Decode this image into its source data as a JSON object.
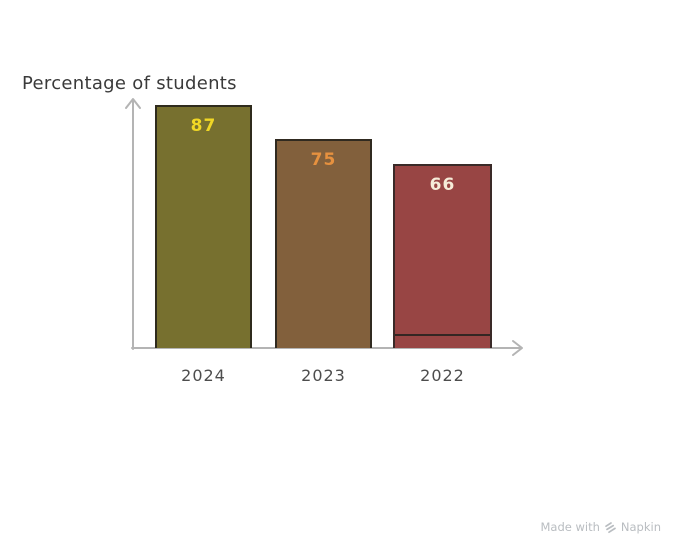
{
  "title": "Percentage of students",
  "watermark": {
    "prefix": "Made with",
    "brand": "Napkin"
  },
  "colors": {
    "axis": "#b4b4b4",
    "title_text": "#3a3a3a",
    "category_text": "#4d4d4d",
    "watermark_text": "#b9bdc1"
  },
  "chart_data": {
    "type": "bar",
    "title": "Percentage of students",
    "categories": [
      "2024",
      "2023",
      "2022"
    ],
    "values": [
      87,
      75,
      66
    ],
    "xlabel": "",
    "ylabel": "Percentage of students",
    "ylim": [
      0,
      90
    ],
    "grid": false,
    "legend": false,
    "bar_colors": [
      "#77702f",
      "#82603c",
      "#984544"
    ],
    "bar_border_colors": [
      "#2f2b1d",
      "#302a20",
      "#3a2a28"
    ],
    "value_label_colors": [
      "#f0d725",
      "#e6913f",
      "#f6ecd9"
    ],
    "annotations": [
      "divider line near bottom of 2022 bar"
    ]
  }
}
